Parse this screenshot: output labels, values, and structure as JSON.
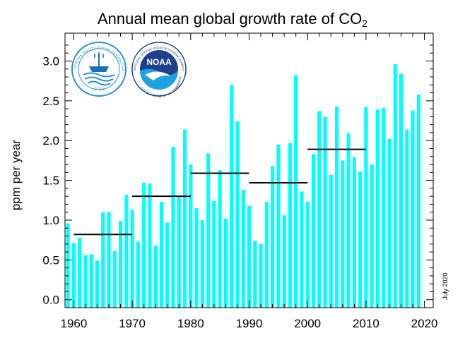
{
  "chart_data": {
    "type": "bar",
    "title_main": "Annual mean global growth rate of CO",
    "title_sub": "2",
    "ylabel": "ppm per year",
    "xlabel": "",
    "stamp": "July 2020",
    "ylim": [
      -0.1,
      3.35
    ],
    "xlim": [
      1958.5,
      2021.5
    ],
    "yticks": [
      "0.0",
      "0.5",
      "1.0",
      "1.5",
      "2.0",
      "2.5",
      "3.0"
    ],
    "xticks": [
      "1960",
      "1970",
      "1980",
      "1990",
      "2000",
      "2010",
      "2020"
    ],
    "bar_color": "#00ffff",
    "years": [
      1959,
      1960,
      1961,
      1962,
      1963,
      1964,
      1965,
      1966,
      1967,
      1968,
      1969,
      1970,
      1971,
      1972,
      1973,
      1974,
      1975,
      1976,
      1977,
      1978,
      1979,
      1980,
      1981,
      1982,
      1983,
      1984,
      1985,
      1986,
      1987,
      1988,
      1989,
      1990,
      1991,
      1992,
      1993,
      1994,
      1995,
      1996,
      1997,
      1998,
      1999,
      2000,
      2001,
      2002,
      2003,
      2004,
      2005,
      2006,
      2007,
      2008,
      2009,
      2010,
      2011,
      2012,
      2013,
      2014,
      2015,
      2016,
      2017,
      2018,
      2019
    ],
    "values": [
      0.96,
      0.71,
      0.78,
      0.56,
      0.57,
      0.49,
      1.1,
      1.1,
      0.61,
      0.99,
      1.32,
      1.13,
      0.73,
      1.47,
      1.46,
      0.68,
      1.23,
      0.97,
      1.92,
      1.29,
      2.14,
      1.7,
      1.15,
      1.0,
      1.84,
      1.24,
      1.63,
      1.02,
      2.7,
      2.24,
      1.38,
      1.18,
      0.74,
      0.7,
      1.23,
      1.68,
      1.95,
      1.06,
      1.97,
      2.82,
      1.36,
      1.23,
      1.83,
      2.37,
      2.3,
      1.57,
      2.43,
      1.75,
      2.09,
      1.79,
      1.61,
      2.42,
      1.7,
      2.39,
      2.41,
      2.02,
      2.96,
      2.84,
      2.14,
      2.38,
      2.58
    ],
    "decadal_means": [
      {
        "start": 1960,
        "end": 1970,
        "value": 0.82
      },
      {
        "start": 1970,
        "end": 1980,
        "value": 1.3
      },
      {
        "start": 1980,
        "end": 1990,
        "value": 1.59
      },
      {
        "start": 1990,
        "end": 2000,
        "value": 1.47
      },
      {
        "start": 2000,
        "end": 2010,
        "value": 1.89
      }
    ]
  },
  "logos": {
    "scripps": {
      "name": "Scripps Institution of Oceanography",
      "text": "SCRIPPS INSTITUTION OF OCEANOGRAPHY",
      "motto": "UCSD"
    },
    "noaa": {
      "name": "NOAA",
      "text": "NOAA",
      "ring_top": "NATIONAL OCEANIC AND ATMOSPHERIC ADMINISTRATION",
      "ring_bottom": "U.S. DEPARTMENT OF COMMERCE"
    }
  }
}
